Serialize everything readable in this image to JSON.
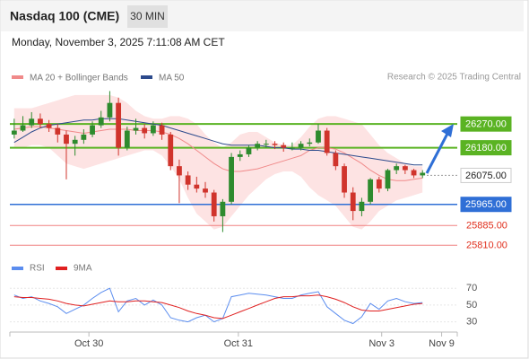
{
  "header": {
    "title": "Nasdaq 100 (CME)",
    "timeframe": "30 MIN",
    "datetime": "Monday, November 3, 2025 7:11:08 AM CET",
    "source": "Research © 2025 Trading Central"
  },
  "chart_data": [
    {
      "type": "candlestick",
      "xlim": [
        -0.5,
        51
      ],
      "ylim": [
        25770,
        26400
      ],
      "up_color": "#2e8b2e",
      "down_color": "#d0342c",
      "open": [
        26230,
        26245,
        26265,
        26290,
        26270,
        26255,
        26230,
        26195,
        26210,
        26230,
        26265,
        26295,
        26350,
        26180,
        26245,
        26255,
        26235,
        26265,
        26230,
        26110,
        26075,
        26040,
        26025,
        26010,
        25920,
        25975,
        26145,
        26155,
        26180,
        26195,
        26195,
        26190,
        26180,
        26180,
        26195,
        26200,
        26245,
        26160,
        26110,
        26010,
        25940,
        25975,
        26060,
        26025,
        26095,
        26110,
        26095,
        26075
      ],
      "high": [
        26290,
        26300,
        26315,
        26310,
        26285,
        26270,
        26245,
        26225,
        26250,
        26280,
        26320,
        26395,
        26370,
        26260,
        26290,
        26270,
        26280,
        26275,
        26240,
        26135,
        26090,
        26070,
        26050,
        26020,
        25985,
        26160,
        26170,
        26190,
        26205,
        26210,
        26205,
        26200,
        26200,
        26205,
        26215,
        26270,
        26255,
        26170,
        26120,
        26030,
        25990,
        26065,
        26070,
        26100,
        26120,
        26115,
        26100,
        26095
      ],
      "low": [
        26215,
        26240,
        26255,
        26255,
        26240,
        26200,
        26060,
        26150,
        26195,
        26220,
        26255,
        26280,
        26150,
        26170,
        26230,
        26215,
        26225,
        26210,
        26095,
        25970,
        26020,
        26010,
        25990,
        25900,
        25860,
        25965,
        26130,
        26145,
        26170,
        26180,
        26175,
        26165,
        26170,
        26170,
        26185,
        26195,
        26150,
        26095,
        25990,
        25905,
        25920,
        25965,
        26010,
        26015,
        26080,
        26080,
        26065,
        26065
      ],
      "close": [
        26245,
        26265,
        26290,
        26270,
        26255,
        26230,
        26195,
        26210,
        26230,
        26265,
        26295,
        26350,
        26180,
        26245,
        26255,
        26235,
        26265,
        26230,
        26110,
        26075,
        26040,
        26025,
        26010,
        25920,
        25975,
        26145,
        26155,
        26180,
        26195,
        26195,
        26190,
        26180,
        26180,
        26195,
        26200,
        26245,
        26160,
        26110,
        26010,
        25940,
        25975,
        26060,
        26025,
        26095,
        26110,
        26095,
        26075,
        26085
      ],
      "series": [
        {
          "name": "MA 20 + Bollinger Bands",
          "color": "#f08a8a",
          "band_color": "#fde3e3",
          "values": [
            26250,
            26255,
            26260,
            26260,
            26255,
            26250,
            26245,
            26240,
            26235,
            26240,
            26245,
            26250,
            26250,
            26250,
            26245,
            26245,
            26245,
            26240,
            26230,
            26215,
            26195,
            26170,
            26145,
            26120,
            26100,
            26090,
            26090,
            26095,
            26100,
            26110,
            26120,
            26130,
            26140,
            26150,
            26170,
            26180,
            26180,
            26175,
            26160,
            26140,
            26120,
            26095,
            26075,
            26060,
            26055,
            26055,
            26060,
            26065
          ],
          "upper": [
            26330,
            26330,
            26330,
            26340,
            26350,
            26360,
            26370,
            26380,
            26380,
            26380,
            26380,
            26380,
            26370,
            26350,
            26320,
            26300,
            26290,
            26290,
            26300,
            26300,
            26290,
            26270,
            26230,
            26200,
            26180,
            26200,
            26230,
            26240,
            26240,
            26220,
            26200,
            26190,
            26190,
            26220,
            26260,
            26290,
            26300,
            26300,
            26290,
            26280,
            26270,
            26230,
            26190,
            26160,
            26140,
            26120,
            26110,
            26110
          ],
          "lower": [
            26180,
            26180,
            26190,
            26190,
            26180,
            26150,
            26120,
            26110,
            26100,
            26110,
            26120,
            26130,
            26140,
            26150,
            26160,
            26170,
            26170,
            26150,
            26110,
            26060,
            25990,
            25930,
            25900,
            25870,
            25880,
            25920,
            25960,
            26000,
            26030,
            26060,
            26080,
            26090,
            26090,
            26070,
            26030,
            26000,
            25980,
            25960,
            25920,
            25880,
            25870,
            25900,
            25940,
            25960,
            25980,
            25990,
            26000,
            26010
          ]
        },
        {
          "name": "MA 50",
          "color": "#2c4a8c",
          "values": [
            26200,
            26220,
            26240,
            26255,
            26265,
            26270,
            26275,
            26280,
            26285,
            26285,
            26290,
            26290,
            26290,
            26285,
            26280,
            26275,
            26270,
            26265,
            26255,
            26245,
            26235,
            26225,
            26215,
            26205,
            26195,
            26190,
            26190,
            26190,
            26190,
            26185,
            26180,
            26180,
            26175,
            26175,
            26170,
            26170,
            26165,
            26160,
            26155,
            26150,
            26145,
            26140,
            26135,
            26130,
            26125,
            26120,
            26115,
            26115
          ]
        }
      ],
      "levels": {
        "values": [
          26270,
          26180,
          26075,
          25965,
          25885,
          25810
        ],
        "value_labels": [
          "26270.00",
          "26180.00",
          "26075.00",
          "25965.00",
          "25885.00",
          "25810.00"
        ],
        "colors": [
          "#5ab323",
          "#5ab323",
          "#999999",
          "#2f6fd6",
          "#f08080",
          "#f08080"
        ]
      }
    },
    {
      "type": "line",
      "xlim": [
        -0.5,
        51
      ],
      "ylim": [
        20,
        82
      ],
      "yticks": [
        30,
        50,
        70
      ],
      "xticks": [
        {
          "value": 8.6,
          "label": "Oct 30"
        },
        {
          "value": 25.8,
          "label": "Oct 31"
        },
        {
          "value": 42.3,
          "label": "Nov 3"
        },
        {
          "value": 49.2,
          "label": "Nov 9"
        }
      ],
      "series": [
        {
          "name": "RSI",
          "color": "#5b8def",
          "values": [
            62,
            58,
            60,
            55,
            52,
            48,
            40,
            45,
            50,
            58,
            65,
            70,
            42,
            55,
            58,
            50,
            56,
            50,
            35,
            32,
            30,
            35,
            38,
            30,
            34,
            60,
            62,
            64,
            63,
            62,
            60,
            58,
            58,
            62,
            64,
            66,
            48,
            40,
            32,
            28,
            36,
            52,
            45,
            55,
            58,
            54,
            52,
            53
          ]
        },
        {
          "name": "9MA",
          "color": "#e02020",
          "values": [
            60,
            59,
            59,
            58,
            57,
            55,
            52,
            50,
            49,
            51,
            53,
            55,
            54,
            54,
            55,
            55,
            54,
            53,
            50,
            47,
            43,
            40,
            38,
            35,
            34,
            38,
            42,
            46,
            50,
            54,
            58,
            60,
            60,
            61,
            61,
            62,
            60,
            57,
            53,
            48,
            44,
            43,
            43,
            45,
            47,
            49,
            51,
            52
          ]
        }
      ]
    }
  ]
}
